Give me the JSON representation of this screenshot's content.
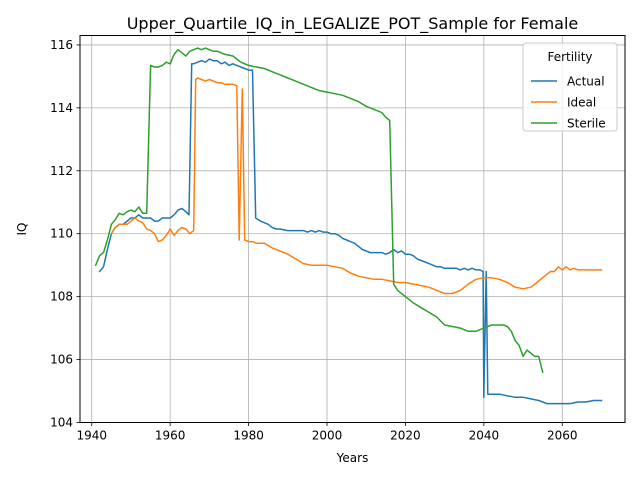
{
  "chart_data": {
    "type": "line",
    "title": "Upper_Quartile_IQ_in_LEGALIZE_POT_Sample for Female",
    "xlabel": "Years",
    "ylabel": "IQ",
    "xlim": [
      1937,
      2076
    ],
    "ylim": [
      104,
      116.3
    ],
    "xticks": [
      1940,
      1960,
      1980,
      2000,
      2020,
      2040,
      2060
    ],
    "yticks": [
      104,
      106,
      108,
      110,
      112,
      114,
      116
    ],
    "grid": true,
    "legend": {
      "title": "Fertility",
      "position": "top-right"
    },
    "series": [
      {
        "name": "Actual",
        "color": "#1f77b4",
        "points": [
          [
            1942,
            108.8
          ],
          [
            1943,
            108.95
          ],
          [
            1944,
            109.5
          ],
          [
            1945,
            110.0
          ],
          [
            1946,
            110.2
          ],
          [
            1947,
            110.3
          ],
          [
            1948,
            110.3
          ],
          [
            1949,
            110.4
          ],
          [
            1950,
            110.5
          ],
          [
            1951,
            110.5
          ],
          [
            1952,
            110.6
          ],
          [
            1953,
            110.5
          ],
          [
            1954,
            110.5
          ],
          [
            1955,
            110.5
          ],
          [
            1956,
            110.4
          ],
          [
            1957,
            110.4
          ],
          [
            1958,
            110.5
          ],
          [
            1959,
            110.5
          ],
          [
            1960,
            110.5
          ],
          [
            1961,
            110.6
          ],
          [
            1962,
            110.75
          ],
          [
            1963,
            110.8
          ],
          [
            1964,
            110.7
          ],
          [
            1964.8,
            110.6
          ],
          [
            1965.5,
            115.4
          ],
          [
            1966,
            115.4
          ],
          [
            1967,
            115.45
          ],
          [
            1968,
            115.5
          ],
          [
            1969,
            115.45
          ],
          [
            1970,
            115.55
          ],
          [
            1971,
            115.5
          ],
          [
            1972,
            115.5
          ],
          [
            1973,
            115.4
          ],
          [
            1974,
            115.45
          ],
          [
            1975,
            115.35
          ],
          [
            1976,
            115.4
          ],
          [
            1977,
            115.35
          ],
          [
            1978,
            115.3
          ],
          [
            1979,
            115.25
          ],
          [
            1980,
            115.2
          ],
          [
            1981,
            115.2
          ],
          [
            1981.8,
            110.5
          ],
          [
            1983,
            110.4
          ],
          [
            1984,
            110.35
          ],
          [
            1985,
            110.3
          ],
          [
            1986,
            110.2
          ],
          [
            1987,
            110.15
          ],
          [
            1988,
            110.15
          ],
          [
            1990,
            110.1
          ],
          [
            1992,
            110.1
          ],
          [
            1994,
            110.1
          ],
          [
            1995,
            110.05
          ],
          [
            1996,
            110.1
          ],
          [
            1997,
            110.05
          ],
          [
            1998,
            110.1
          ],
          [
            1999,
            110.05
          ],
          [
            2000,
            110.05
          ],
          [
            2001,
            110.0
          ],
          [
            2002,
            110.0
          ],
          [
            2003,
            109.95
          ],
          [
            2004,
            109.85
          ],
          [
            2005,
            109.8
          ],
          [
            2006,
            109.75
          ],
          [
            2007,
            109.7
          ],
          [
            2008,
            109.6
          ],
          [
            2009,
            109.5
          ],
          [
            2010,
            109.45
          ],
          [
            2011,
            109.4
          ],
          [
            2012,
            109.4
          ],
          [
            2013,
            109.4
          ],
          [
            2014,
            109.4
          ],
          [
            2015,
            109.35
          ],
          [
            2016,
            109.4
          ],
          [
            2017,
            109.5
          ],
          [
            2018,
            109.4
          ],
          [
            2019,
            109.45
          ],
          [
            2020,
            109.35
          ],
          [
            2021,
            109.35
          ],
          [
            2022,
            109.3
          ],
          [
            2023,
            109.2
          ],
          [
            2024,
            109.15
          ],
          [
            2025,
            109.1
          ],
          [
            2026,
            109.05
          ],
          [
            2027,
            109.0
          ],
          [
            2028,
            108.95
          ],
          [
            2029,
            108.95
          ],
          [
            2030,
            108.9
          ],
          [
            2031,
            108.9
          ],
          [
            2032,
            108.9
          ],
          [
            2033,
            108.9
          ],
          [
            2034,
            108.85
          ],
          [
            2035,
            108.9
          ],
          [
            2036,
            108.85
          ],
          [
            2037,
            108.9
          ],
          [
            2038,
            108.85
          ],
          [
            2039,
            108.85
          ],
          [
            2039.8,
            108.8
          ],
          [
            2040,
            104.8
          ],
          [
            2040.6,
            108.8
          ],
          [
            2041,
            104.9
          ],
          [
            2042,
            104.9
          ],
          [
            2044,
            104.9
          ],
          [
            2046,
            104.85
          ],
          [
            2048,
            104.8
          ],
          [
            2050,
            104.8
          ],
          [
            2052,
            104.75
          ],
          [
            2054,
            104.7
          ],
          [
            2056,
            104.6
          ],
          [
            2058,
            104.6
          ],
          [
            2060,
            104.6
          ],
          [
            2062,
            104.6
          ],
          [
            2064,
            104.65
          ],
          [
            2066,
            104.65
          ],
          [
            2068,
            104.7
          ],
          [
            2070,
            104.7
          ]
        ]
      },
      {
        "name": "Ideal",
        "color": "#ff7f0e",
        "points": [
          [
            1945,
            110.0
          ],
          [
            1946,
            110.2
          ],
          [
            1947,
            110.3
          ],
          [
            1948,
            110.3
          ],
          [
            1949,
            110.3
          ],
          [
            1950,
            110.4
          ],
          [
            1951,
            110.5
          ],
          [
            1952,
            110.4
          ],
          [
            1953,
            110.35
          ],
          [
            1954,
            110.15
          ],
          [
            1955,
            110.1
          ],
          [
            1956,
            110.0
          ],
          [
            1957,
            109.75
          ],
          [
            1958,
            109.8
          ],
          [
            1959,
            109.95
          ],
          [
            1960,
            110.15
          ],
          [
            1961,
            109.95
          ],
          [
            1962,
            110.1
          ],
          [
            1963,
            110.2
          ],
          [
            1964,
            110.15
          ],
          [
            1965,
            110.0
          ],
          [
            1966,
            110.1
          ],
          [
            1966.5,
            114.9
          ],
          [
            1967,
            114.95
          ],
          [
            1968,
            114.9
          ],
          [
            1969,
            114.85
          ],
          [
            1970,
            114.9
          ],
          [
            1971,
            114.85
          ],
          [
            1972,
            114.8
          ],
          [
            1973,
            114.8
          ],
          [
            1974,
            114.75
          ],
          [
            1975,
            114.75
          ],
          [
            1976,
            114.75
          ],
          [
            1977,
            114.7
          ],
          [
            1977.6,
            109.8
          ],
          [
            1978.4,
            114.6
          ],
          [
            1979,
            109.8
          ],
          [
            1980,
            109.75
          ],
          [
            1981,
            109.75
          ],
          [
            1982,
            109.7
          ],
          [
            1984,
            109.7
          ],
          [
            1986,
            109.55
          ],
          [
            1988,
            109.45
          ],
          [
            1990,
            109.35
          ],
          [
            1992,
            109.2
          ],
          [
            1994,
            109.05
          ],
          [
            1996,
            109.0
          ],
          [
            1998,
            109.0
          ],
          [
            2000,
            109.0
          ],
          [
            2002,
            108.95
          ],
          [
            2004,
            108.9
          ],
          [
            2006,
            108.75
          ],
          [
            2008,
            108.65
          ],
          [
            2010,
            108.6
          ],
          [
            2012,
            108.55
          ],
          [
            2014,
            108.55
          ],
          [
            2016,
            108.5
          ],
          [
            2018,
            108.45
          ],
          [
            2020,
            108.45
          ],
          [
            2022,
            108.4
          ],
          [
            2024,
            108.35
          ],
          [
            2026,
            108.3
          ],
          [
            2028,
            108.2
          ],
          [
            2030,
            108.1
          ],
          [
            2032,
            108.1
          ],
          [
            2034,
            108.2
          ],
          [
            2036,
            108.4
          ],
          [
            2038,
            108.55
          ],
          [
            2040,
            108.6
          ],
          [
            2042,
            108.6
          ],
          [
            2044,
            108.55
          ],
          [
            2046,
            108.45
          ],
          [
            2048,
            108.3
          ],
          [
            2050,
            108.25
          ],
          [
            2052,
            108.3
          ],
          [
            2054,
            108.5
          ],
          [
            2056,
            108.7
          ],
          [
            2057,
            108.8
          ],
          [
            2058,
            108.8
          ],
          [
            2059,
            108.95
          ],
          [
            2060,
            108.85
          ],
          [
            2061,
            108.95
          ],
          [
            2062,
            108.85
          ],
          [
            2063,
            108.9
          ],
          [
            2064,
            108.85
          ],
          [
            2066,
            108.85
          ],
          [
            2068,
            108.85
          ],
          [
            2070,
            108.85
          ]
        ]
      },
      {
        "name": "Sterile",
        "color": "#2ca02c",
        "points": [
          [
            1941,
            109.0
          ],
          [
            1942,
            109.3
          ],
          [
            1943,
            109.4
          ],
          [
            1944,
            109.8
          ],
          [
            1945,
            110.3
          ],
          [
            1946,
            110.45
          ],
          [
            1947,
            110.65
          ],
          [
            1948,
            110.6
          ],
          [
            1949,
            110.7
          ],
          [
            1950,
            110.75
          ],
          [
            1951,
            110.7
          ],
          [
            1952,
            110.85
          ],
          [
            1953,
            110.65
          ],
          [
            1954,
            110.65
          ],
          [
            1955,
            115.35
          ],
          [
            1956,
            115.3
          ],
          [
            1957,
            115.3
          ],
          [
            1958,
            115.35
          ],
          [
            1959,
            115.45
          ],
          [
            1960,
            115.4
          ],
          [
            1961,
            115.7
          ],
          [
            1962,
            115.85
          ],
          [
            1963,
            115.75
          ],
          [
            1964,
            115.65
          ],
          [
            1965,
            115.8
          ],
          [
            1966,
            115.85
          ],
          [
            1967,
            115.9
          ],
          [
            1968,
            115.85
          ],
          [
            1969,
            115.9
          ],
          [
            1970,
            115.85
          ],
          [
            1971,
            115.8
          ],
          [
            1972,
            115.8
          ],
          [
            1973,
            115.75
          ],
          [
            1974,
            115.7
          ],
          [
            1976,
            115.65
          ],
          [
            1978,
            115.45
          ],
          [
            1980,
            115.35
          ],
          [
            1982,
            115.3
          ],
          [
            1984,
            115.25
          ],
          [
            1986,
            115.15
          ],
          [
            1988,
            115.05
          ],
          [
            1990,
            114.95
          ],
          [
            1992,
            114.85
          ],
          [
            1994,
            114.75
          ],
          [
            1996,
            114.65
          ],
          [
            1998,
            114.55
          ],
          [
            2000,
            114.5
          ],
          [
            2002,
            114.45
          ],
          [
            2004,
            114.4
          ],
          [
            2006,
            114.3
          ],
          [
            2008,
            114.2
          ],
          [
            2010,
            114.05
          ],
          [
            2012,
            113.95
          ],
          [
            2014,
            113.85
          ],
          [
            2015,
            113.7
          ],
          [
            2016,
            113.6
          ],
          [
            2017,
            108.4
          ],
          [
            2018,
            108.2
          ],
          [
            2020,
            108.0
          ],
          [
            2022,
            107.8
          ],
          [
            2024,
            107.65
          ],
          [
            2026,
            107.5
          ],
          [
            2028,
            107.35
          ],
          [
            2030,
            107.1
          ],
          [
            2032,
            107.05
          ],
          [
            2034,
            107.0
          ],
          [
            2036,
            106.9
          ],
          [
            2038,
            106.9
          ],
          [
            2040,
            107.0
          ],
          [
            2042,
            107.1
          ],
          [
            2044,
            107.1
          ],
          [
            2045,
            107.1
          ],
          [
            2046,
            107.05
          ],
          [
            2047,
            106.9
          ],
          [
            2048,
            106.6
          ],
          [
            2049,
            106.45
          ],
          [
            2050,
            106.1
          ],
          [
            2051,
            106.3
          ],
          [
            2052,
            106.2
          ],
          [
            2053,
            106.1
          ],
          [
            2054,
            106.1
          ],
          [
            2055,
            105.6
          ]
        ]
      }
    ]
  }
}
